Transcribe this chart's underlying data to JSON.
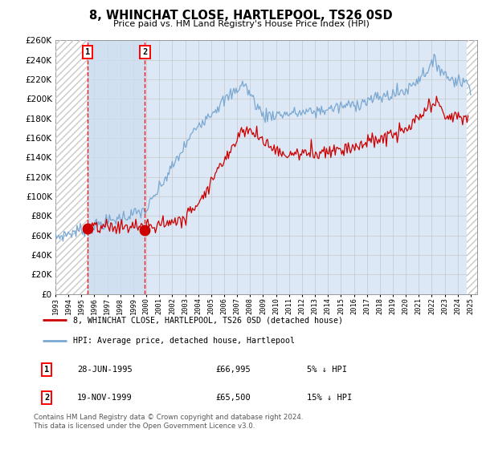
{
  "title": "8, WHINCHAT CLOSE, HARTLEPOOL, TS26 0SD",
  "subtitle": "Price paid vs. HM Land Registry's House Price Index (HPI)",
  "legend_line1": "8, WHINCHAT CLOSE, HARTLEPOOL, TS26 0SD (detached house)",
  "legend_line2": "HPI: Average price, detached house, Hartlepool",
  "sale1_date": "28-JUN-1995",
  "sale1_price": "£66,995",
  "sale1_hpi": "5% ↓ HPI",
  "sale2_date": "19-NOV-1999",
  "sale2_price": "£65,500",
  "sale2_hpi": "15% ↓ HPI",
  "footnote": "Contains HM Land Registry data © Crown copyright and database right 2024.\nThis data is licensed under the Open Government Licence v3.0.",
  "sale1_year": 1995.5,
  "sale2_year": 1999.9,
  "sale1_value": 66995,
  "sale2_value": 65500,
  "hpi_color": "#7aa8d2",
  "price_color": "#cc0000",
  "marker_color": "#cc0000",
  "background_color": "#ffffff",
  "plot_bg_color": "#dce8f5",
  "hatch_color": "#b0b0b0",
  "grid_color": "#c0c0c0",
  "ylim_min": 0,
  "ylim_max": 260000,
  "xmin": 1993,
  "xmax": 2025.5
}
